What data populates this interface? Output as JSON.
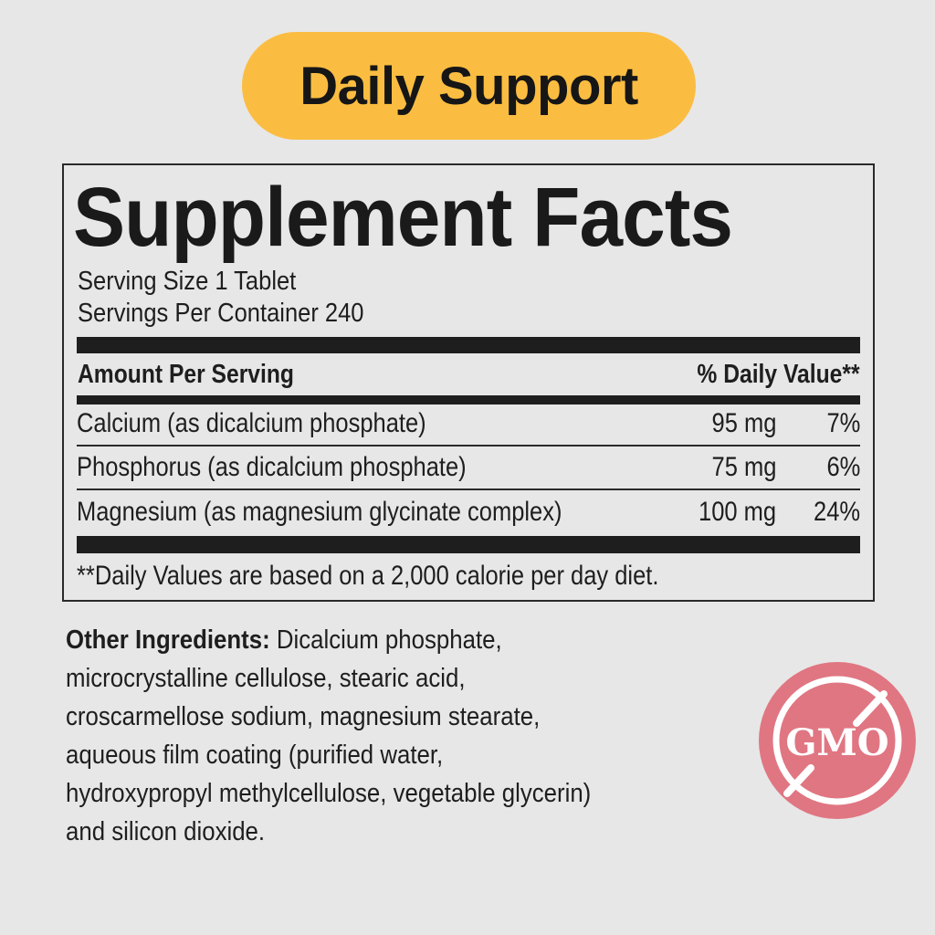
{
  "badge": {
    "label": "Daily Support",
    "color": "#fbbd41"
  },
  "facts": {
    "title": "Supplement Facts",
    "serving_size": "Serving Size 1 Tablet",
    "servings_per_container": "Servings Per Container 240",
    "header": {
      "amount": "Amount Per Serving",
      "dv": "% Daily Value**"
    },
    "rows": [
      {
        "name": "Calcium (as dicalcium phosphate)",
        "amount": "95 mg",
        "dv": "7%"
      },
      {
        "name": "Phosphorus (as dicalcium phosphate)",
        "amount": "75 mg",
        "dv": "6%"
      },
      {
        "name": "Magnesium (as magnesium glycinate complex)",
        "amount": "100 mg",
        "dv": "24%"
      }
    ],
    "footnote": "**Daily Values are based on a 2,000 calorie per day diet."
  },
  "other_ingredients": {
    "label": "Other Ingredients:",
    "lines": [
      " Dicalcium phosphate,",
      "microcrystalline cellulose, stearic acid,",
      "croscarmellose sodium, magnesium stearate,",
      "aqueous film coating (purified water,",
      "hydroxypropyl methylcellulose, vegetable glycerin)",
      "and silicon dioxide."
    ]
  },
  "gmo_badge": {
    "text": "GMO",
    "icon": "no-gmo-icon",
    "color": "#e07682"
  }
}
